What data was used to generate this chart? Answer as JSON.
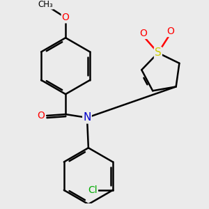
{
  "bg_color": "#ebebeb",
  "atom_colors": {
    "O": "#ff0000",
    "N": "#0000cc",
    "S": "#cccc00",
    "Cl": "#00aa00",
    "C": "#000000"
  },
  "bond_color": "#000000",
  "bond_width": 1.8,
  "font_size": 10,
  "dbo": 0.032
}
